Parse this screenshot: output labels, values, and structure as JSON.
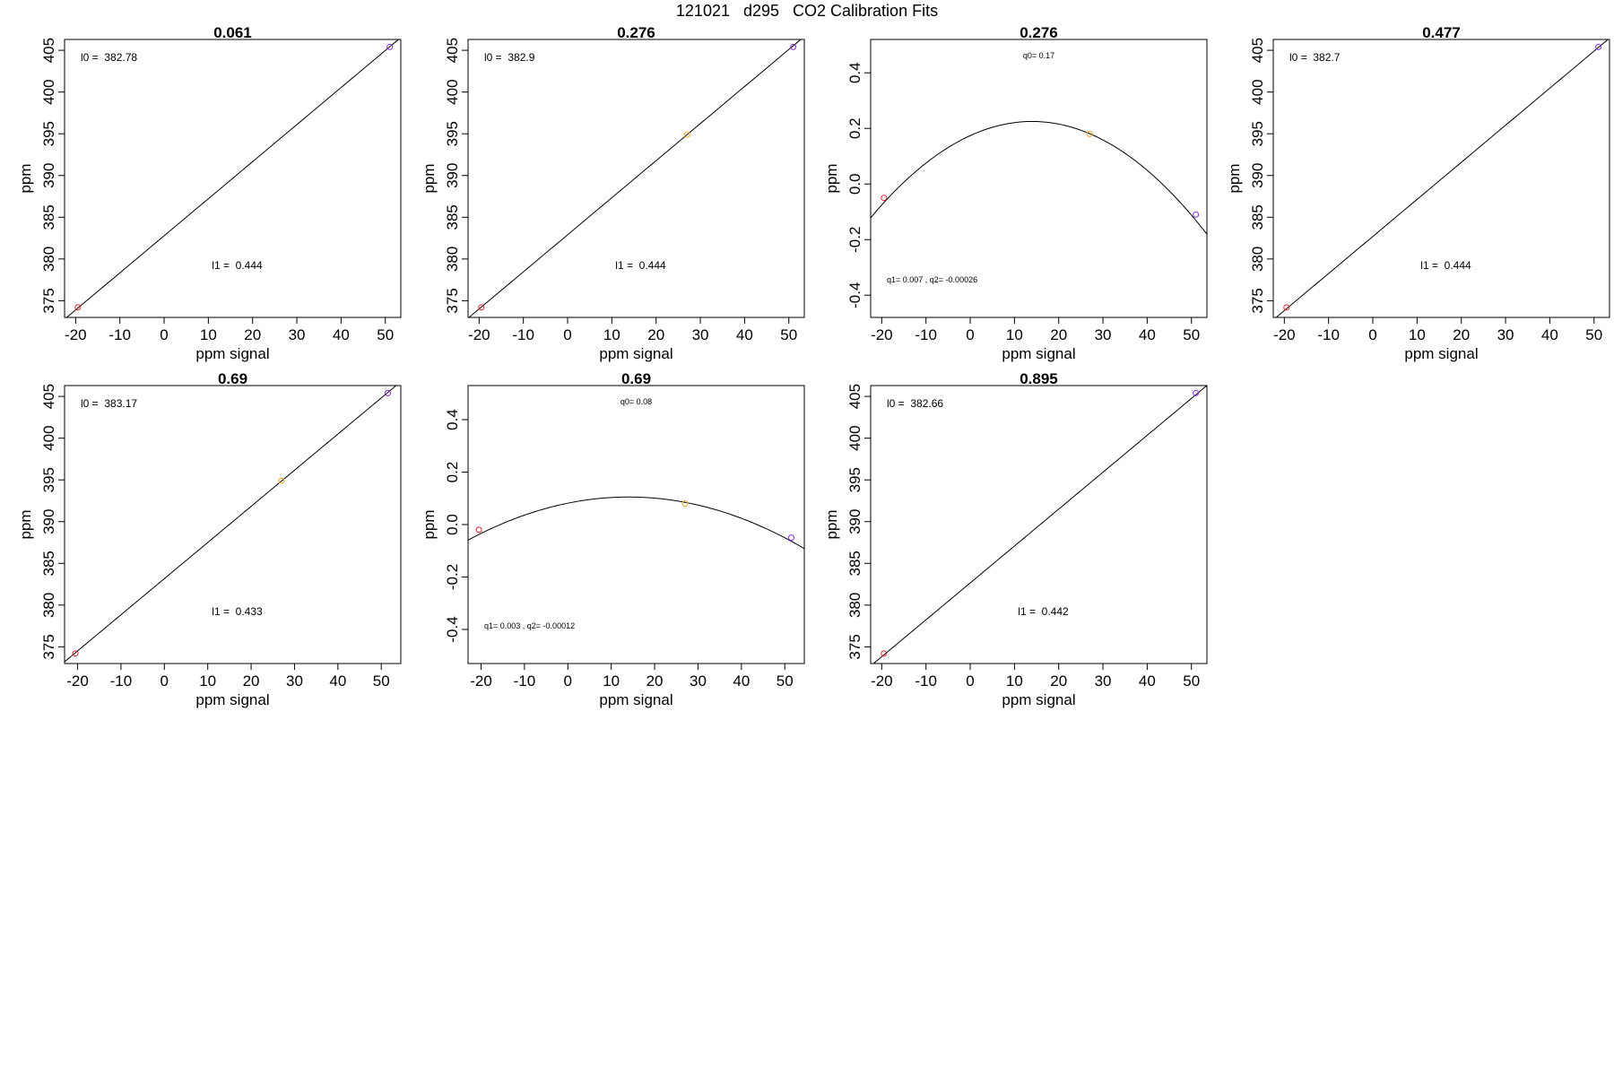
{
  "page": {
    "title": "121021   d295   CO2 Calibration Fits"
  },
  "colors": {
    "fit_line": "#000000",
    "point_low": "#e8202a",
    "point_mid": "#f5a623",
    "point_high": "#8a2be2"
  },
  "chart_data": [
    {
      "type": "scatter",
      "title": "0.061",
      "xlabel": "ppm signal",
      "ylabel": "ppm",
      "xlim": [
        -22.5,
        53.5
      ],
      "ylim": [
        373,
        406.3
      ],
      "xticks": [
        "-20",
        "-10",
        "0",
        "10",
        "20",
        "30",
        "40",
        "50"
      ],
      "yticks": [
        "375",
        "380",
        "385",
        "390",
        "395",
        "400",
        "405"
      ],
      "points": [
        {
          "x": -19.5,
          "y": 374.2,
          "color": "point_low"
        },
        {
          "x": 51,
          "y": 405.4,
          "color": "point_high"
        }
      ],
      "fit": {
        "kind": "linear",
        "intercept": 382.78,
        "slope": 0.444
      },
      "annotations": [
        {
          "text": "l0 =  382.78",
          "position": "top-left"
        },
        {
          "text": "l1 =  0.444",
          "position": "bottom-center"
        }
      ],
      "grid": false
    },
    {
      "type": "scatter",
      "title": "0.276",
      "xlabel": "ppm signal",
      "ylabel": "ppm",
      "xlim": [
        -22.5,
        53.5
      ],
      "ylim": [
        373,
        406.3
      ],
      "xticks": [
        "-20",
        "-10",
        "0",
        "10",
        "20",
        "30",
        "40",
        "50"
      ],
      "yticks": [
        "375",
        "380",
        "385",
        "390",
        "395",
        "400",
        "405"
      ],
      "points": [
        {
          "x": -19.5,
          "y": 374.2,
          "color": "point_low"
        },
        {
          "x": 27,
          "y": 394.9,
          "color": "point_mid"
        },
        {
          "x": 51,
          "y": 405.4,
          "color": "point_high"
        }
      ],
      "fit": {
        "kind": "linear",
        "intercept": 382.9,
        "slope": 0.444
      },
      "annotations": [
        {
          "text": "l0 =  382.9",
          "position": "top-left"
        },
        {
          "text": "l1 =  0.444",
          "position": "bottom-center"
        }
      ],
      "grid": false
    },
    {
      "type": "scatter",
      "title": "0.276",
      "xlabel": "ppm signal",
      "ylabel": "ppm",
      "xlim": [
        -22.5,
        53.5
      ],
      "ylim": [
        -0.48,
        0.52
      ],
      "xticks": [
        "-20",
        "-10",
        "0",
        "10",
        "20",
        "30",
        "40",
        "50"
      ],
      "yticks": [
        "-0.4",
        "-0.2",
        "0.0",
        "0.2",
        "0.4"
      ],
      "points": [
        {
          "x": -19.5,
          "y": -0.05,
          "color": "point_low"
        },
        {
          "x": 27,
          "y": 0.18,
          "color": "point_mid"
        },
        {
          "x": 51,
          "y": -0.11,
          "color": "point_high"
        }
      ],
      "fit": {
        "kind": "quadratic",
        "vertex_x": 14,
        "vertex_y": 0.225,
        "q2": -0.00026
      },
      "annotations": [
        {
          "text": "q0= 0.17",
          "position": "top-center"
        },
        {
          "text": "q1= 0.007 , q2= -0.00026",
          "position": "bottom-left"
        }
      ],
      "grid": false
    },
    {
      "type": "scatter",
      "title": "0.477",
      "xlabel": "ppm signal",
      "ylabel": "ppm",
      "xlim": [
        -22.5,
        53.5
      ],
      "ylim": [
        373,
        406.3
      ],
      "xticks": [
        "-20",
        "-10",
        "0",
        "10",
        "20",
        "30",
        "40",
        "50"
      ],
      "yticks": [
        "375",
        "380",
        "385",
        "390",
        "395",
        "400",
        "405"
      ],
      "points": [
        {
          "x": -19.5,
          "y": 374.2,
          "color": "point_low"
        },
        {
          "x": 51,
          "y": 405.4,
          "color": "point_high"
        }
      ],
      "fit": {
        "kind": "linear",
        "intercept": 382.7,
        "slope": 0.444
      },
      "annotations": [
        {
          "text": "l0 =  382.7",
          "position": "top-left"
        },
        {
          "text": "l1 =  0.444",
          "position": "bottom-center"
        }
      ],
      "grid": false
    },
    {
      "type": "scatter",
      "title": "0.69",
      "xlabel": "ppm signal",
      "ylabel": "ppm",
      "xlim": [
        -23,
        54.5
      ],
      "ylim": [
        373,
        406.3
      ],
      "xticks": [
        "-20",
        "-10",
        "0",
        "10",
        "20",
        "30",
        "40",
        "50"
      ],
      "yticks": [
        "375",
        "380",
        "385",
        "390",
        "395",
        "400",
        "405"
      ],
      "points": [
        {
          "x": -20.5,
          "y": 374.2,
          "color": "point_low"
        },
        {
          "x": 27,
          "y": 394.9,
          "color": "point_mid"
        },
        {
          "x": 51.5,
          "y": 405.4,
          "color": "point_high"
        }
      ],
      "fit": {
        "kind": "linear",
        "intercept": 383.17,
        "slope": 0.433
      },
      "annotations": [
        {
          "text": "l0 =  383.17",
          "position": "top-left"
        },
        {
          "text": "l1 =  0.433",
          "position": "bottom-center"
        }
      ],
      "grid": false
    },
    {
      "type": "scatter",
      "title": "0.69",
      "xlabel": "ppm signal",
      "ylabel": "ppm",
      "xlim": [
        -23,
        54.5
      ],
      "ylim": [
        -0.53,
        0.53
      ],
      "xticks": [
        "-20",
        "-10",
        "0",
        "10",
        "20",
        "30",
        "40",
        "50"
      ],
      "yticks": [
        "-0.4",
        "-0.2",
        "0.0",
        "0.2",
        "0.4"
      ],
      "points": [
        {
          "x": -20.5,
          "y": -0.02,
          "color": "point_low"
        },
        {
          "x": 27,
          "y": 0.08,
          "color": "point_mid"
        },
        {
          "x": 51.5,
          "y": -0.05,
          "color": "point_high"
        }
      ],
      "fit": {
        "kind": "quadratic",
        "vertex_x": 14,
        "vertex_y": 0.105,
        "q2": -0.00012
      },
      "annotations": [
        {
          "text": "q0= 0.08",
          "position": "top-center"
        },
        {
          "text": "q1= 0.003 , q2= -0.00012",
          "position": "bottom-left"
        }
      ],
      "grid": false
    },
    {
      "type": "scatter",
      "title": "0.895",
      "xlabel": "ppm signal",
      "ylabel": "ppm",
      "xlim": [
        -22.5,
        53.5
      ],
      "ylim": [
        373,
        406.3
      ],
      "xticks": [
        "-20",
        "-10",
        "0",
        "10",
        "20",
        "30",
        "40",
        "50"
      ],
      "yticks": [
        "375",
        "380",
        "385",
        "390",
        "395",
        "400",
        "405"
      ],
      "points": [
        {
          "x": -19.5,
          "y": 374.2,
          "color": "point_low"
        },
        {
          "x": 51,
          "y": 405.4,
          "color": "point_high"
        }
      ],
      "fit": {
        "kind": "linear",
        "intercept": 382.66,
        "slope": 0.442
      },
      "annotations": [
        {
          "text": "l0 =  382.66",
          "position": "top-left"
        },
        {
          "text": "l1 =  0.442",
          "position": "bottom-center"
        }
      ],
      "grid": false
    }
  ]
}
